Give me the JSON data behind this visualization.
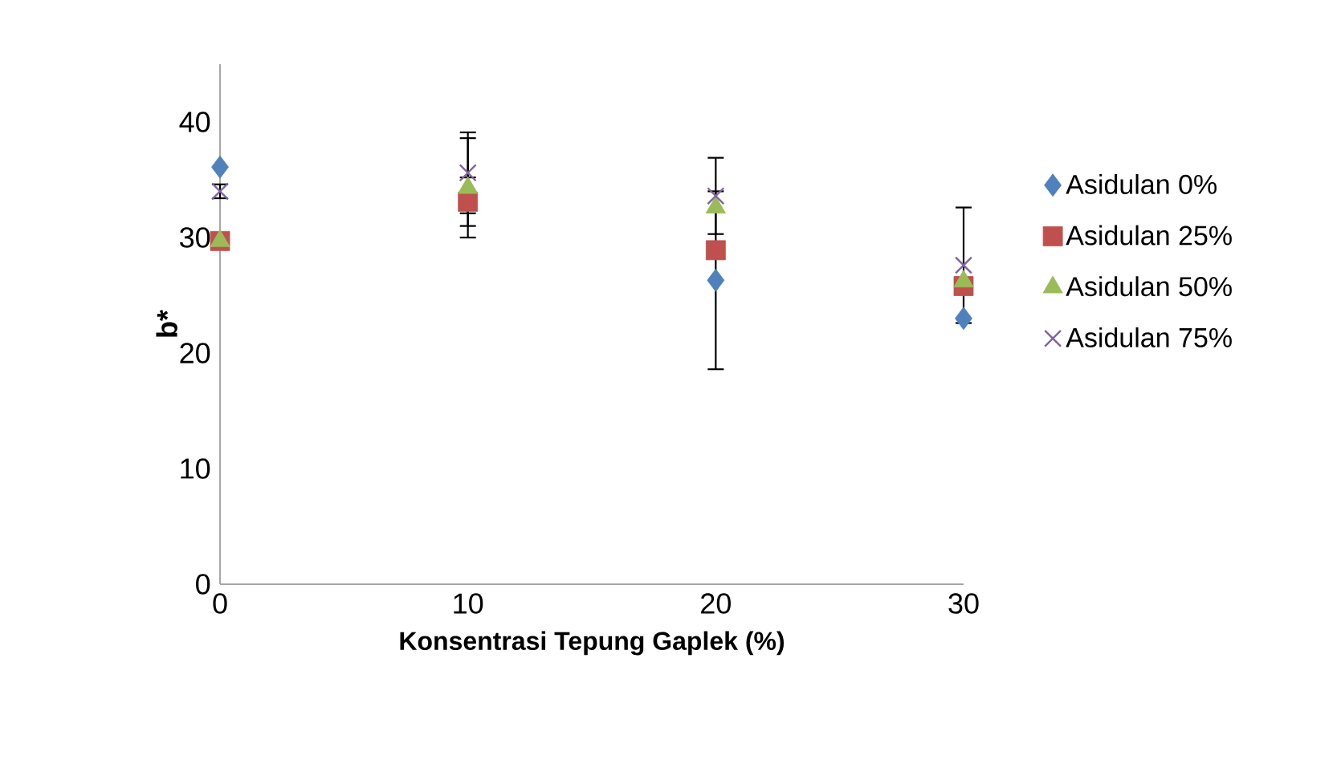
{
  "chart_data": {
    "type": "scatter",
    "xlabel": "Konsentrasi Tepung Gaplek (%)",
    "ylabel": "b*",
    "x": [
      0,
      10,
      20,
      30
    ],
    "xlim": [
      0,
      30
    ],
    "xticks": [
      0,
      10,
      20,
      30
    ],
    "ylim": [
      0,
      45
    ],
    "yticks": [
      0,
      10,
      20,
      30,
      40
    ],
    "grid": false,
    "legend": "right",
    "series": [
      {
        "name": "Asidulan 0%",
        "color": "#4f81bd",
        "marker": "diamond",
        "values": [
          36.1,
          null,
          26.3,
          23.0
        ],
        "errors": [
          null,
          null,
          7.7,
          null
        ]
      },
      {
        "name": "Asidulan 25%",
        "color": "#c0504d",
        "marker": "square",
        "values": [
          29.7,
          33.1,
          28.9,
          25.8
        ],
        "errors": [
          null,
          2.1,
          null,
          null
        ]
      },
      {
        "name": "Asidulan 50%",
        "color": "#9bbb59",
        "marker": "triangle",
        "values": [
          29.7,
          34.3,
          32.6,
          26.2
        ],
        "errors": [
          null,
          4.3,
          null,
          null
        ]
      },
      {
        "name": "Asidulan 75%",
        "color": "#8064a2",
        "marker": "cross",
        "values": [
          34.0,
          35.6,
          33.6,
          27.6
        ],
        "errors": [
          0.6,
          3.5,
          3.3,
          5.0
        ]
      }
    ]
  }
}
